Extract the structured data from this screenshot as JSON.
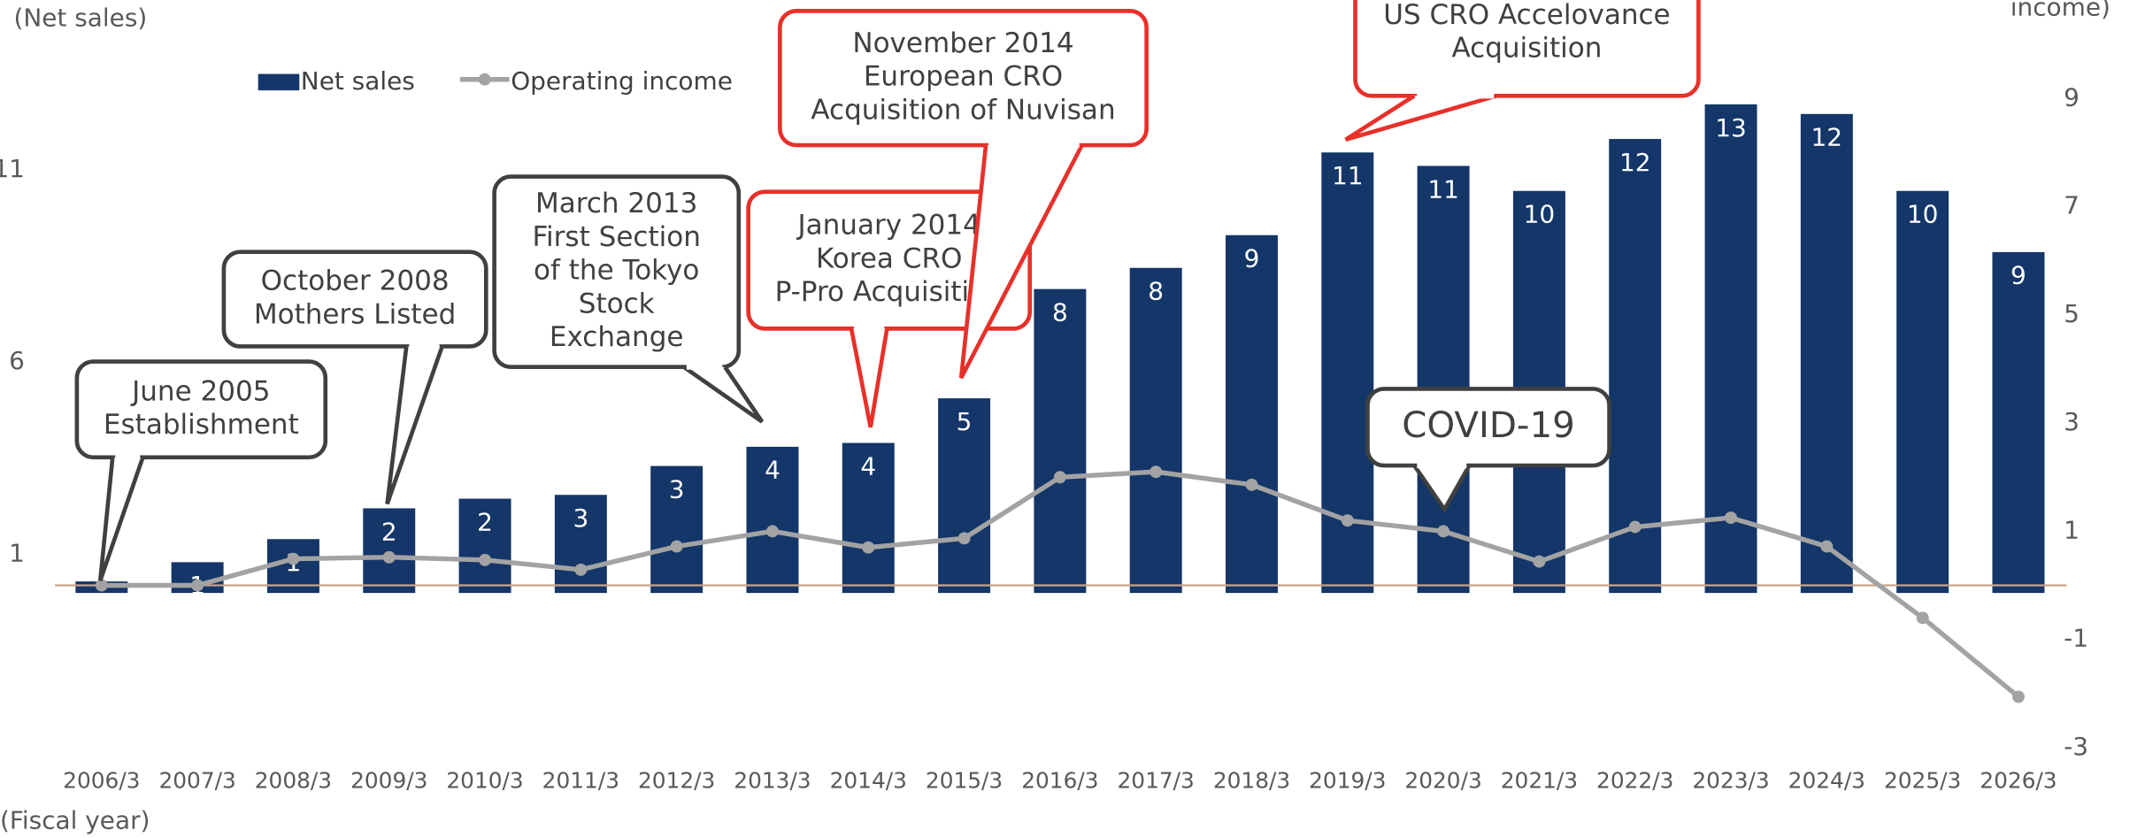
{
  "chart_data": {
    "type": "bar_line",
    "y_label": "(Net sales)",
    "y2_label": "income)",
    "x_label": "(Fiscal year)",
    "categories": [
      "2006/3",
      "2007/3",
      "2008/3",
      "2009/3",
      "2010/3",
      "2011/3",
      "2012/3",
      "2013/3",
      "2014/3",
      "2015/3",
      "2016/3",
      "2017/3",
      "2018/3",
      "2019/3",
      "2020/3",
      "2021/3",
      "2022/3",
      "2023/3",
      "2024/3",
      "2025/3",
      "2026/3"
    ],
    "series": [
      {
        "name": "Net sales",
        "color": "#143668",
        "kind": "bar",
        "values": [
          0.3,
          0.8,
          1.4,
          2.2,
          2.45,
          2.55,
          3.3,
          3.8,
          3.9,
          5.06,
          7.9,
          8.45,
          9.3,
          11.45,
          11.1,
          10.45,
          11.8,
          12.7,
          12.45,
          10.45,
          8.86
        ],
        "value_labels": [
          null,
          "1",
          "1",
          "2",
          "2",
          "3",
          "3",
          "4",
          "4",
          "5",
          "8",
          "8",
          "9",
          "11",
          "11",
          "10",
          "12",
          "13",
          "12",
          "10",
          "9"
        ]
      },
      {
        "name": "Operating income",
        "color": "#a3a3a3",
        "kind": "line",
        "axis": "y2",
        "values": [
          0,
          0,
          0.49,
          0.52,
          0.47,
          0.29,
          0.72,
          1.0,
          0.7,
          0.87,
          2.0,
          2.1,
          1.86,
          1.2,
          1.0,
          0.44,
          1.08,
          1.25,
          0.72,
          -0.6,
          -2.06
        ]
      }
    ],
    "ylim": [
      -4.02,
      12.85
    ],
    "yticks": [
      1,
      6,
      11
    ],
    "y2lim": [
      -3,
      9
    ],
    "y2ticks": [
      -3,
      -1,
      1,
      3,
      5,
      7,
      9
    ],
    "annotations": [
      {
        "lines": [
          "June 2005",
          "Establishment"
        ],
        "border": "#404040"
      },
      {
        "lines": [
          "October 2008",
          "Mothers Listed"
        ],
        "border": "#404040"
      },
      {
        "lines": [
          "March 2013",
          "First Section",
          "of the Tokyo",
          "Stock",
          "Exchange"
        ],
        "border": "#404040"
      },
      {
        "lines": [
          "January 2014",
          "Korea CRO",
          "P-Pro Acquisition"
        ],
        "border": "#e8302a"
      },
      {
        "lines": [
          "November 2014",
          "European CRO",
          "Acquisition of Nuvisan"
        ],
        "border": "#e8302a"
      },
      {
        "lines": [
          "US CRO Accelovance",
          "Acquisition"
        ],
        "border": "#e8302a"
      },
      {
        "lines": [
          "COVID-19"
        ],
        "border": "#404040"
      }
    ]
  }
}
